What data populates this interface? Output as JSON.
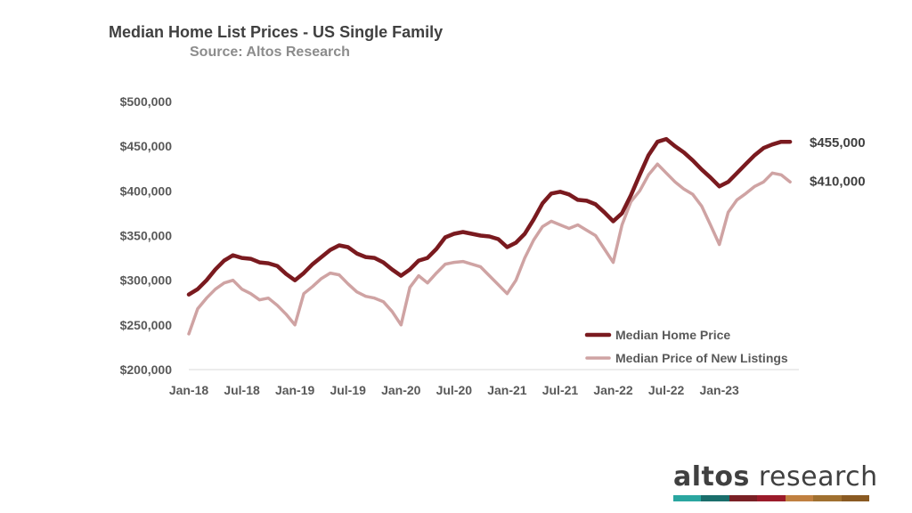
{
  "title": "Median Home List Prices - US Single Family",
  "subtitle": "Source: Altos Research",
  "brand": {
    "name_bold": "altos",
    "name_light": " research",
    "bar_colors": [
      "#2aa6a0",
      "#1a6e6c",
      "#7a2025",
      "#9b1b2a",
      "#c08040",
      "#a07030",
      "#8a5a22"
    ]
  },
  "colors": {
    "median_home_price": "#7a1a1f",
    "new_listings": "#cfa3a3",
    "axis": "#d9d9d9"
  },
  "chart_data": {
    "type": "line",
    "title": "Median Home List Prices - US Single Family",
    "subtitle": "Source: Altos Research",
    "xlabel": "",
    "ylabel": "",
    "ylim": [
      200000,
      500000
    ],
    "y_ticks": [
      200000,
      250000,
      300000,
      350000,
      400000,
      450000,
      500000
    ],
    "y_tick_labels": [
      "$200,000",
      "$250,000",
      "$300,000",
      "$350,000",
      "$400,000",
      "$450,000",
      "$500,000"
    ],
    "x_range": [
      "2018-01",
      "2023-10"
    ],
    "x_ticks": [
      "2018-01",
      "2018-07",
      "2019-01",
      "2019-07",
      "2020-01",
      "2020-07",
      "2021-01",
      "2021-07",
      "2022-01",
      "2022-07",
      "2023-01"
    ],
    "x_tick_labels": [
      "Jan-18",
      "Jul-18",
      "Jan-19",
      "Jul-19",
      "Jan-20",
      "Jul-20",
      "Jan-21",
      "Jul-21",
      "Jan-22",
      "Jul-22",
      "Jan-23"
    ],
    "grid": false,
    "legend_position": "bottom-right",
    "series": [
      {
        "name": "Median Home Price",
        "end_label": "$455,000",
        "points": [
          [
            "2018-01",
            284000
          ],
          [
            "2018-02",
            290000
          ],
          [
            "2018-03",
            300000
          ],
          [
            "2018-04",
            312000
          ],
          [
            "2018-05",
            322000
          ],
          [
            "2018-06",
            328000
          ],
          [
            "2018-07",
            325000
          ],
          [
            "2018-08",
            324000
          ],
          [
            "2018-09",
            320000
          ],
          [
            "2018-10",
            319000
          ],
          [
            "2018-11",
            316000
          ],
          [
            "2018-12",
            307000
          ],
          [
            "2019-01",
            300000
          ],
          [
            "2019-02",
            308000
          ],
          [
            "2019-03",
            318000
          ],
          [
            "2019-04",
            326000
          ],
          [
            "2019-05",
            334000
          ],
          [
            "2019-06",
            339000
          ],
          [
            "2019-07",
            337000
          ],
          [
            "2019-08",
            330000
          ],
          [
            "2019-09",
            326000
          ],
          [
            "2019-10",
            325000
          ],
          [
            "2019-11",
            320000
          ],
          [
            "2019-12",
            312000
          ],
          [
            "2020-01",
            305000
          ],
          [
            "2020-02",
            312000
          ],
          [
            "2020-03",
            322000
          ],
          [
            "2020-04",
            325000
          ],
          [
            "2020-05",
            335000
          ],
          [
            "2020-06",
            348000
          ],
          [
            "2020-07",
            352000
          ],
          [
            "2020-08",
            354000
          ],
          [
            "2020-09",
            352000
          ],
          [
            "2020-10",
            350000
          ],
          [
            "2020-11",
            349000
          ],
          [
            "2020-12",
            346000
          ],
          [
            "2021-01",
            337000
          ],
          [
            "2021-02",
            342000
          ],
          [
            "2021-03",
            352000
          ],
          [
            "2021-04",
            368000
          ],
          [
            "2021-05",
            386000
          ],
          [
            "2021-06",
            397000
          ],
          [
            "2021-07",
            399000
          ],
          [
            "2021-08",
            396000
          ],
          [
            "2021-09",
            390000
          ],
          [
            "2021-10",
            389000
          ],
          [
            "2021-11",
            385000
          ],
          [
            "2021-12",
            376000
          ],
          [
            "2022-01",
            366000
          ],
          [
            "2022-02",
            375000
          ],
          [
            "2022-03",
            395000
          ],
          [
            "2022-04",
            418000
          ],
          [
            "2022-05",
            440000
          ],
          [
            "2022-06",
            455000
          ],
          [
            "2022-07",
            458000
          ],
          [
            "2022-08",
            450000
          ],
          [
            "2022-09",
            443000
          ],
          [
            "2022-10",
            434000
          ],
          [
            "2022-11",
            424000
          ],
          [
            "2022-12",
            415000
          ],
          [
            "2023-01",
            405000
          ],
          [
            "2023-02",
            410000
          ],
          [
            "2023-03",
            420000
          ],
          [
            "2023-04",
            430000
          ],
          [
            "2023-05",
            440000
          ],
          [
            "2023-06",
            448000
          ],
          [
            "2023-07",
            452000
          ],
          [
            "2023-08",
            455000
          ],
          [
            "2023-09",
            455000
          ]
        ]
      },
      {
        "name": "Median Price of New Listings",
        "end_label": "$410,000",
        "points": [
          [
            "2018-01",
            240000
          ],
          [
            "2018-02",
            268000
          ],
          [
            "2018-03",
            280000
          ],
          [
            "2018-04",
            290000
          ],
          [
            "2018-05",
            297000
          ],
          [
            "2018-06",
            300000
          ],
          [
            "2018-07",
            290000
          ],
          [
            "2018-08",
            285000
          ],
          [
            "2018-09",
            278000
          ],
          [
            "2018-10",
            280000
          ],
          [
            "2018-11",
            272000
          ],
          [
            "2018-12",
            262000
          ],
          [
            "2019-01",
            250000
          ],
          [
            "2019-02",
            285000
          ],
          [
            "2019-03",
            293000
          ],
          [
            "2019-04",
            302000
          ],
          [
            "2019-05",
            308000
          ],
          [
            "2019-06",
            306000
          ],
          [
            "2019-07",
            296000
          ],
          [
            "2019-08",
            287000
          ],
          [
            "2019-09",
            282000
          ],
          [
            "2019-10",
            280000
          ],
          [
            "2019-11",
            276000
          ],
          [
            "2019-12",
            265000
          ],
          [
            "2020-01",
            250000
          ],
          [
            "2020-02",
            292000
          ],
          [
            "2020-03",
            305000
          ],
          [
            "2020-04",
            297000
          ],
          [
            "2020-05",
            308000
          ],
          [
            "2020-06",
            318000
          ],
          [
            "2020-07",
            320000
          ],
          [
            "2020-08",
            321000
          ],
          [
            "2020-09",
            318000
          ],
          [
            "2020-10",
            315000
          ],
          [
            "2020-11",
            305000
          ],
          [
            "2020-12",
            295000
          ],
          [
            "2021-01",
            285000
          ],
          [
            "2021-02",
            300000
          ],
          [
            "2021-03",
            325000
          ],
          [
            "2021-04",
            345000
          ],
          [
            "2021-05",
            360000
          ],
          [
            "2021-06",
            366000
          ],
          [
            "2021-07",
            362000
          ],
          [
            "2021-08",
            358000
          ],
          [
            "2021-09",
            362000
          ],
          [
            "2021-10",
            356000
          ],
          [
            "2021-11",
            350000
          ],
          [
            "2021-12",
            335000
          ],
          [
            "2022-01",
            320000
          ],
          [
            "2022-02",
            362000
          ],
          [
            "2022-03",
            388000
          ],
          [
            "2022-04",
            400000
          ],
          [
            "2022-05",
            418000
          ],
          [
            "2022-06",
            430000
          ],
          [
            "2022-07",
            420000
          ],
          [
            "2022-08",
            410000
          ],
          [
            "2022-09",
            402000
          ],
          [
            "2022-10",
            396000
          ],
          [
            "2022-11",
            383000
          ],
          [
            "2022-12",
            362000
          ],
          [
            "2023-01",
            340000
          ],
          [
            "2023-02",
            376000
          ],
          [
            "2023-03",
            390000
          ],
          [
            "2023-04",
            397000
          ],
          [
            "2023-05",
            405000
          ],
          [
            "2023-06",
            410000
          ],
          [
            "2023-07",
            420000
          ],
          [
            "2023-08",
            418000
          ],
          [
            "2023-09",
            410000
          ]
        ]
      }
    ]
  }
}
